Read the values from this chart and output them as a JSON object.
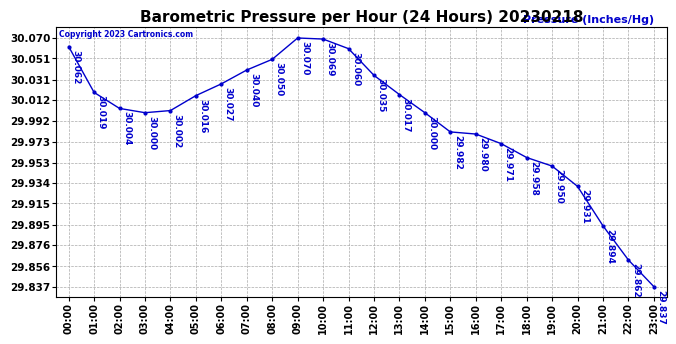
{
  "title": "Barometric Pressure per Hour (24 Hours) 20230218",
  "ylabel": "Pressure (Inches/Hg)",
  "copyright_text": "Copyright 2023 Cartronics.com",
  "hours": [
    "00:00",
    "01:00",
    "02:00",
    "03:00",
    "04:00",
    "05:00",
    "06:00",
    "07:00",
    "08:00",
    "09:00",
    "10:00",
    "11:00",
    "12:00",
    "13:00",
    "14:00",
    "15:00",
    "16:00",
    "17:00",
    "18:00",
    "19:00",
    "20:00",
    "21:00",
    "22:00",
    "23:00"
  ],
  "values": [
    30.062,
    30.019,
    30.004,
    30.0,
    30.002,
    30.016,
    30.027,
    30.04,
    30.05,
    30.07,
    30.069,
    30.06,
    30.035,
    30.017,
    30.0,
    29.982,
    29.98,
    29.971,
    29.958,
    29.95,
    29.931,
    29.894,
    29.862,
    29.837
  ],
  "line_color": "#0000cc",
  "marker_color": "#0000cc",
  "grid_color": "#aaaaaa",
  "background_color": "#ffffff",
  "title_color": "#000000",
  "ylabel_color": "#0000cc",
  "label_color": "#0000cc",
  "copyright_color": "#0000cc",
  "ytick_values": [
    29.837,
    29.856,
    29.876,
    29.895,
    29.915,
    29.934,
    29.953,
    29.973,
    29.992,
    30.012,
    30.031,
    30.051,
    30.07
  ],
  "ylim_min": 29.827,
  "ylim_max": 30.08,
  "title_fontsize": 11,
  "label_fontsize": 6.5,
  "axis_label_fontsize": 8,
  "ytick_fontsize": 7.5,
  "xtick_fontsize": 7
}
